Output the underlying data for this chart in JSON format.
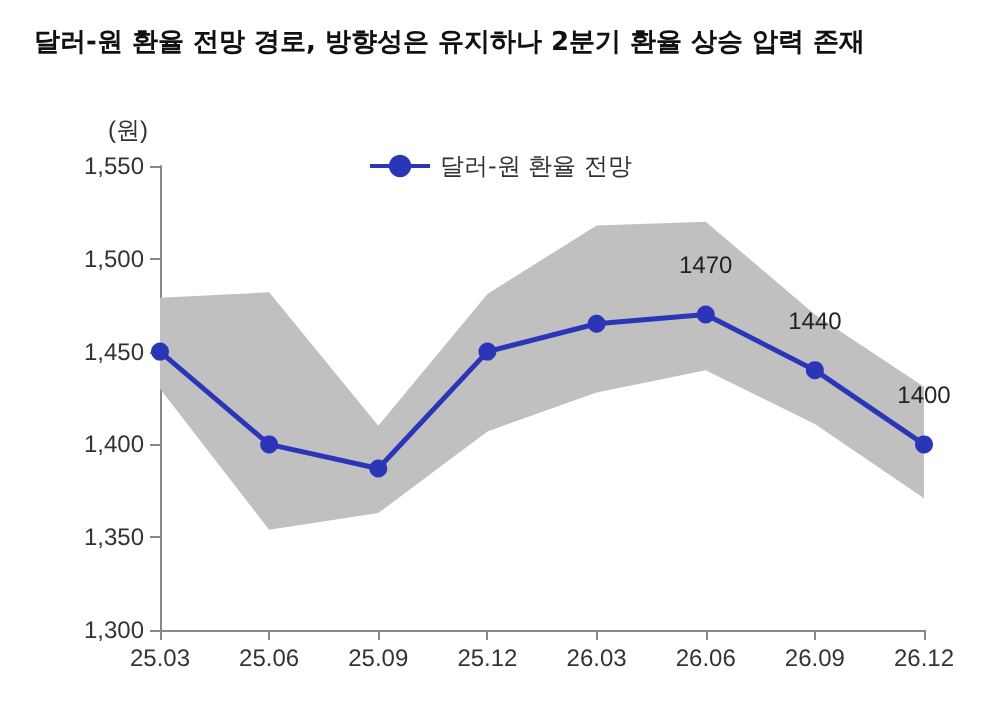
{
  "chart_data": {
    "type": "line",
    "title": "달러-원 환율 전망 경로, 방향성은 유지하나 2분기 환율 상승 압력 존재",
    "ylabel": "(원)",
    "categories": [
      "25.03",
      "25.06",
      "25.09",
      "25.12",
      "26.03",
      "26.06",
      "26.09",
      "26.12"
    ],
    "series": [
      {
        "name": "달러-원 환율 전망",
        "color": "#2b35b8",
        "values": [
          1450,
          1400,
          1387,
          1450,
          1465,
          1470,
          1440,
          1400
        ],
        "lower": [
          1430,
          1354,
          1363,
          1407,
          1428,
          1440,
          1411,
          1371
        ],
        "upper": [
          1479,
          1482,
          1410,
          1481,
          1518,
          1520,
          1470,
          1431
        ],
        "value_labels": [
          null,
          null,
          null,
          null,
          null,
          "1470",
          "1440",
          "1400"
        ]
      }
    ],
    "ylim": [
      1300,
      1550
    ],
    "yticks": [
      {
        "value": 1300,
        "label": "1,300"
      },
      {
        "value": 1350,
        "label": "1,350"
      },
      {
        "value": 1400,
        "label": "1,400"
      },
      {
        "value": 1450,
        "label": "1,450"
      },
      {
        "value": 1500,
        "label": "1,500"
      },
      {
        "value": 1550,
        "label": "1,550"
      }
    ],
    "grid": false,
    "legend": "top",
    "marker": "circle",
    "line_style": "solid"
  }
}
